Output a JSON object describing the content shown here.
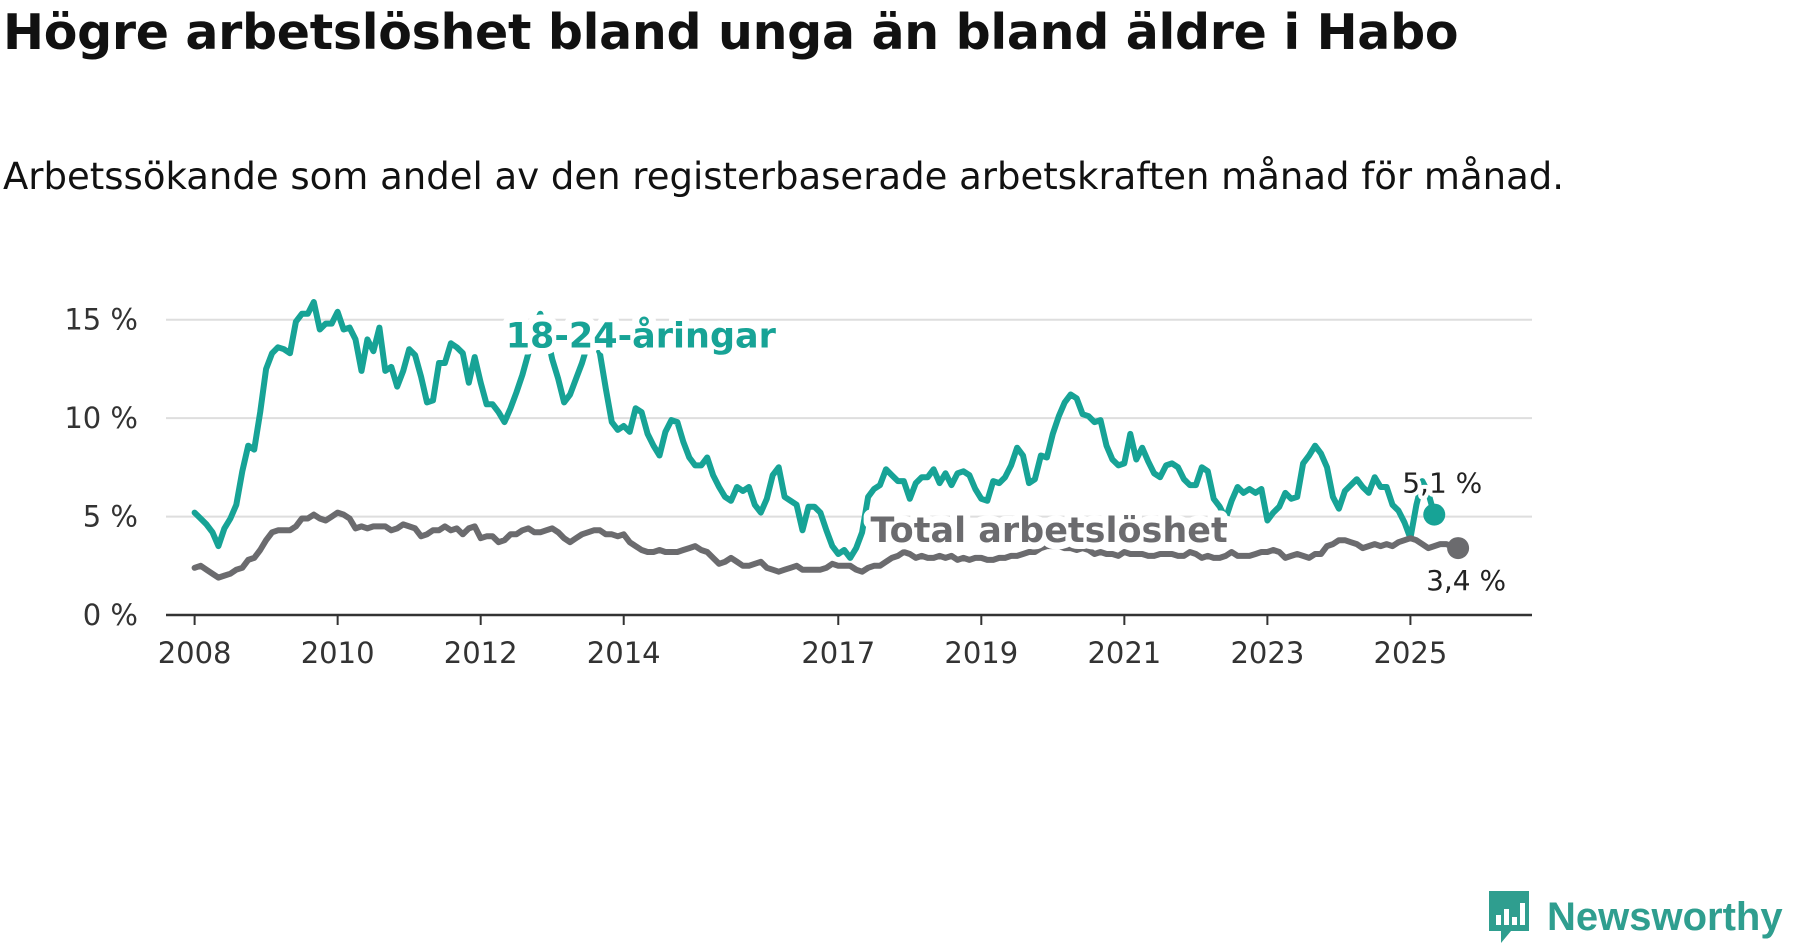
{
  "title": "Högre arbetslöshet bland unga än bland äldre i Habo",
  "subtitle": "Arbetssökande som andel av den registerbaserade arbetskraften månad för månad.",
  "brand": {
    "name": "Newsworthy",
    "color": "#2f9e8f",
    "icon": "bar-chart-speech-bubble-icon"
  },
  "chart_data": {
    "type": "line",
    "x_start": 2008.0,
    "x_step_months": 1,
    "xlim": [
      2007.6,
      2026.7
    ],
    "ylim": [
      0,
      16
    ],
    "grid": true,
    "x_ticks": [
      {
        "value": 2008,
        "label": "2008"
      },
      {
        "value": 2010,
        "label": "2010"
      },
      {
        "value": 2012,
        "label": "2012"
      },
      {
        "value": 2014,
        "label": "2014"
      },
      {
        "value": 2017,
        "label": "2017"
      },
      {
        "value": 2019,
        "label": "2019"
      },
      {
        "value": 2021,
        "label": "2021"
      },
      {
        "value": 2023,
        "label": "2023"
      },
      {
        "value": 2025,
        "label": "2025"
      }
    ],
    "y_ticks": [
      {
        "value": 0,
        "label": "0 %"
      },
      {
        "value": 5,
        "label": "5 %"
      },
      {
        "value": 10,
        "label": "10 %"
      },
      {
        "value": 15,
        "label": "15 %"
      }
    ],
    "series": [
      {
        "name": "18-24-åringar",
        "color": "#17a396",
        "label_pos": [
          2012.35,
          13.6
        ],
        "end_label": "5,1 %",
        "values": [
          5.2,
          4.9,
          4.6,
          4.2,
          3.5,
          4.4,
          4.9,
          5.6,
          7.3,
          8.6,
          8.4,
          10.3,
          12.5,
          13.3,
          13.6,
          13.5,
          13.3,
          14.9,
          15.3,
          15.3,
          15.9,
          14.5,
          14.8,
          14.8,
          15.4,
          14.5,
          14.6,
          14.0,
          12.4,
          14.0,
          13.4,
          14.6,
          12.4,
          12.6,
          11.6,
          12.4,
          13.5,
          13.2,
          12.1,
          10.8,
          10.9,
          12.8,
          12.8,
          13.8,
          13.6,
          13.3,
          11.8,
          13.1,
          11.8,
          10.7,
          10.7,
          10.3,
          9.8,
          10.5,
          11.3,
          12.2,
          13.3,
          14.6,
          15.3,
          14.4,
          13.0,
          12.0,
          10.8,
          11.2,
          12.0,
          12.8,
          13.8,
          14.0,
          13.3,
          11.5,
          9.8,
          9.4,
          9.6,
          9.3,
          10.5,
          10.3,
          9.2,
          8.6,
          8.1,
          9.3,
          9.9,
          9.8,
          8.8,
          8.0,
          7.6,
          7.6,
          8.0,
          7.1,
          6.5,
          6.0,
          5.8,
          6.5,
          6.3,
          6.5,
          5.6,
          5.2,
          5.9,
          7.1,
          7.5,
          6.0,
          5.8,
          5.6,
          4.3,
          5.5,
          5.5,
          5.2,
          4.3,
          3.5,
          3.1,
          3.3,
          2.9,
          3.4,
          4.2,
          6.0,
          6.4,
          6.6,
          7.4,
          7.1,
          6.8,
          6.8,
          5.9,
          6.7,
          7.0,
          7.0,
          7.4,
          6.7,
          7.2,
          6.6,
          7.2,
          7.3,
          7.1,
          6.4,
          5.9,
          5.8,
          6.8,
          6.7,
          7.0,
          7.6,
          8.5,
          8.1,
          6.7,
          6.9,
          8.1,
          8.0,
          9.2,
          10.1,
          10.8,
          11.2,
          11.0,
          10.2,
          10.1,
          9.8,
          9.9,
          8.6,
          7.9,
          7.6,
          7.7,
          9.2,
          7.9,
          8.5,
          7.8,
          7.2,
          7.0,
          7.6,
          7.7,
          7.5,
          6.9,
          6.6,
          6.6,
          7.5,
          7.3,
          5.9,
          5.5,
          4.9,
          5.8,
          6.5,
          6.2,
          6.4,
          6.2,
          6.4,
          4.8,
          5.2,
          5.5,
          6.2,
          5.9,
          6.0,
          7.7,
          8.1,
          8.6,
          8.2,
          7.5,
          6.0,
          5.4,
          6.3,
          6.6,
          6.9,
          6.5,
          6.2,
          7.0,
          6.5,
          6.5,
          5.6,
          5.3,
          4.7,
          3.9,
          5.6,
          6.8,
          6.2,
          5.1
        ]
      },
      {
        "name": "Total arbetslöshet",
        "color": "#6b6b6e",
        "label_pos": [
          2017.45,
          3.7
        ],
        "end_label": "3,4 %",
        "values": [
          2.4,
          2.5,
          2.3,
          2.1,
          1.9,
          2.0,
          2.1,
          2.3,
          2.4,
          2.8,
          2.9,
          3.3,
          3.8,
          4.2,
          4.3,
          4.3,
          4.3,
          4.5,
          4.9,
          4.9,
          5.1,
          4.9,
          4.8,
          5.0,
          5.2,
          5.1,
          4.9,
          4.4,
          4.5,
          4.4,
          4.5,
          4.5,
          4.5,
          4.3,
          4.4,
          4.6,
          4.5,
          4.4,
          4.0,
          4.1,
          4.3,
          4.3,
          4.5,
          4.3,
          4.4,
          4.1,
          4.4,
          4.5,
          3.9,
          4.0,
          4.0,
          3.7,
          3.8,
          4.1,
          4.1,
          4.3,
          4.4,
          4.2,
          4.2,
          4.3,
          4.4,
          4.2,
          3.9,
          3.7,
          3.9,
          4.1,
          4.2,
          4.3,
          4.3,
          4.1,
          4.1,
          4.0,
          4.1,
          3.7,
          3.5,
          3.3,
          3.2,
          3.2,
          3.3,
          3.2,
          3.2,
          3.2,
          3.3,
          3.4,
          3.5,
          3.3,
          3.2,
          2.9,
          2.6,
          2.7,
          2.9,
          2.7,
          2.5,
          2.5,
          2.6,
          2.7,
          2.4,
          2.3,
          2.2,
          2.3,
          2.4,
          2.5,
          2.3,
          2.3,
          2.3,
          2.3,
          2.4,
          2.6,
          2.5,
          2.5,
          2.5,
          2.3,
          2.2,
          2.4,
          2.5,
          2.5,
          2.7,
          2.9,
          3.0,
          3.2,
          3.1,
          2.9,
          3.0,
          2.9,
          2.9,
          3.0,
          2.9,
          3.0,
          2.8,
          2.9,
          2.8,
          2.9,
          2.9,
          2.8,
          2.8,
          2.9,
          2.9,
          3.0,
          3.0,
          3.1,
          3.2,
          3.2,
          3.4,
          3.5,
          3.5,
          3.5,
          3.4,
          3.4,
          3.3,
          3.4,
          3.3,
          3.1,
          3.2,
          3.1,
          3.1,
          3.0,
          3.2,
          3.1,
          3.1,
          3.1,
          3.0,
          3.0,
          3.1,
          3.1,
          3.1,
          3.0,
          3.0,
          3.2,
          3.1,
          2.9,
          3.0,
          2.9,
          2.9,
          3.0,
          3.2,
          3.0,
          3.0,
          3.0,
          3.1,
          3.2,
          3.2,
          3.3,
          3.2,
          2.9,
          3.0,
          3.1,
          3.0,
          2.9,
          3.1,
          3.1,
          3.5,
          3.6,
          3.8,
          3.8,
          3.7,
          3.6,
          3.4,
          3.5,
          3.6,
          3.5,
          3.6,
          3.5,
          3.7,
          3.8,
          3.9,
          3.8,
          3.6,
          3.4,
          3.5,
          3.6,
          3.6,
          3.5,
          3.4
        ]
      }
    ]
  }
}
